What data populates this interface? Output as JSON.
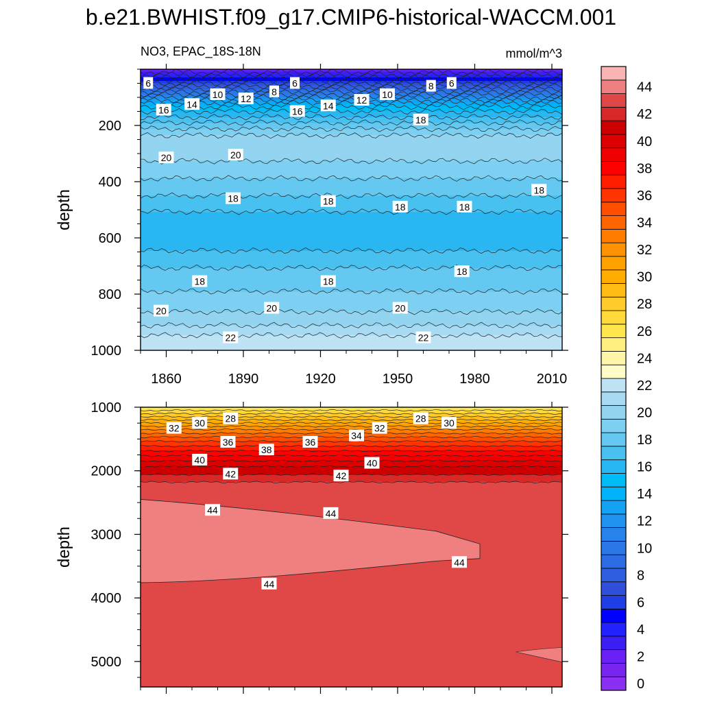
{
  "title": "b.e21.BWHIST.f09_g17.CMIP6-historical-WACCM.001",
  "chart_data": [
    {
      "type": "heatmap",
      "panel": "upper",
      "variable_label": "NO3, EPAC_18S-18N",
      "units_label": "mmol/m^3",
      "ylabel": "depth",
      "xlabel": "",
      "x_range": [
        1850,
        2014
      ],
      "y_range": [
        0,
        1000
      ],
      "y_reversed": true,
      "x_ticks": [
        "1860",
        "1890",
        "1920",
        "1950",
        "1980",
        "2010"
      ],
      "x_tick_values": [
        1860,
        1890,
        1920,
        1950,
        1980,
        2010
      ],
      "y_ticks": [
        "200",
        "400",
        "600",
        "800",
        "1000"
      ],
      "y_tick_values": [
        200,
        400,
        600,
        800,
        1000
      ],
      "depth_profile": [
        [
          0,
          2
        ],
        [
          20,
          4
        ],
        [
          40,
          6
        ],
        [
          60,
          8
        ],
        [
          80,
          10
        ],
        [
          100,
          12
        ],
        [
          120,
          14
        ],
        [
          140,
          15.5
        ],
        [
          170,
          17
        ],
        [
          200,
          18.5
        ],
        [
          240,
          20.2
        ],
        [
          280,
          20.6
        ],
        [
          320,
          20.1
        ],
        [
          360,
          19.5
        ],
        [
          400,
          18.8
        ],
        [
          440,
          18.2
        ],
        [
          480,
          17.4
        ],
        [
          520,
          16.8
        ],
        [
          560,
          16.2
        ],
        [
          600,
          16.3
        ],
        [
          640,
          16.9
        ],
        [
          680,
          17.6
        ],
        [
          720,
          18.2
        ],
        [
          760,
          18.7
        ],
        [
          800,
          19.1
        ],
        [
          840,
          19.6
        ],
        [
          880,
          20.3
        ],
        [
          920,
          21.2
        ],
        [
          950,
          22.1
        ],
        [
          980,
          22.6
        ],
        [
          1000,
          22.9
        ]
      ],
      "contour_labels": [
        {
          "text": "6",
          "x": 1853,
          "y": 50
        },
        {
          "text": "6",
          "x": 1910,
          "y": 50
        },
        {
          "text": "6",
          "x": 1971,
          "y": 50
        },
        {
          "text": "8",
          "x": 1902,
          "y": 80
        },
        {
          "text": "8",
          "x": 1963,
          "y": 60
        },
        {
          "text": "10",
          "x": 1880,
          "y": 90
        },
        {
          "text": "10",
          "x": 1946,
          "y": 90
        },
        {
          "text": "12",
          "x": 1891,
          "y": 105
        },
        {
          "text": "12",
          "x": 1936,
          "y": 110
        },
        {
          "text": "14",
          "x": 1870,
          "y": 125
        },
        {
          "text": "14",
          "x": 1923,
          "y": 130
        },
        {
          "text": "16",
          "x": 1859,
          "y": 145
        },
        {
          "text": "16",
          "x": 1911,
          "y": 150
        },
        {
          "text": "18",
          "x": 1959,
          "y": 180
        },
        {
          "text": "20",
          "x": 1860,
          "y": 315
        },
        {
          "text": "20",
          "x": 1887,
          "y": 305
        },
        {
          "text": "18",
          "x": 1886,
          "y": 460
        },
        {
          "text": "18",
          "x": 1923,
          "y": 470
        },
        {
          "text": "18",
          "x": 1951,
          "y": 490
        },
        {
          "text": "18",
          "x": 1976,
          "y": 490
        },
        {
          "text": "18",
          "x": 2005,
          "y": 430
        },
        {
          "text": "18",
          "x": 1975,
          "y": 720
        },
        {
          "text": "18",
          "x": 1873,
          "y": 755
        },
        {
          "text": "18",
          "x": 1923,
          "y": 755
        },
        {
          "text": "20",
          "x": 1858,
          "y": 860
        },
        {
          "text": "20",
          "x": 1901,
          "y": 850
        },
        {
          "text": "20",
          "x": 1951,
          "y": 850
        },
        {
          "text": "22",
          "x": 1885,
          "y": 955
        },
        {
          "text": "22",
          "x": 1960,
          "y": 955
        }
      ]
    },
    {
      "type": "heatmap",
      "panel": "lower",
      "ylabel": "depth",
      "xlabel": "",
      "x_range": [
        1850,
        2014
      ],
      "y_range": [
        1000,
        5400
      ],
      "y_reversed": true,
      "y_ticks": [
        "1000",
        "2000",
        "3000",
        "4000",
        "5000"
      ],
      "y_tick_values": [
        1000,
        2000,
        3000,
        4000,
        5000
      ],
      "depth_profile": [
        [
          1000,
          26
        ],
        [
          1100,
          28
        ],
        [
          1200,
          30
        ],
        [
          1350,
          33
        ],
        [
          1500,
          35.5
        ],
        [
          1650,
          37.5
        ],
        [
          1800,
          39.5
        ],
        [
          1950,
          41.2
        ],
        [
          2100,
          42.3
        ],
        [
          2200,
          43.2
        ],
        [
          2400,
          43.6
        ],
        [
          5400,
          43.6
        ]
      ],
      "high_region": {
        "value": 44.6,
        "top_start": [
          1850,
          2450
        ],
        "top_end": [
          1965,
          2950
        ],
        "nose_x": 1982,
        "bottom_start": [
          1850,
          3760
        ],
        "bottom_end": [
          1965,
          3420
        ]
      },
      "deep_patch": {
        "value": 44.6,
        "depth_start": 4850,
        "depth_end": 4780,
        "x_start": 1996
      },
      "contour_labels": [
        {
          "text": "28",
          "x": 1885,
          "y": 1180
        },
        {
          "text": "28",
          "x": 1959,
          "y": 1180
        },
        {
          "text": "30",
          "x": 1873,
          "y": 1250
        },
        {
          "text": "30",
          "x": 1970,
          "y": 1250
        },
        {
          "text": "32",
          "x": 1863,
          "y": 1330
        },
        {
          "text": "32",
          "x": 1943,
          "y": 1330
        },
        {
          "text": "34",
          "x": 1934,
          "y": 1450
        },
        {
          "text": "36",
          "x": 1884,
          "y": 1550
        },
        {
          "text": "36",
          "x": 1916,
          "y": 1550
        },
        {
          "text": "38",
          "x": 1899,
          "y": 1670
        },
        {
          "text": "40",
          "x": 1873,
          "y": 1830
        },
        {
          "text": "40",
          "x": 1940,
          "y": 1880
        },
        {
          "text": "42",
          "x": 1885,
          "y": 2050
        },
        {
          "text": "42",
          "x": 1928,
          "y": 2080
        },
        {
          "text": "44",
          "x": 1878,
          "y": 2620
        },
        {
          "text": "44",
          "x": 1924,
          "y": 2670
        },
        {
          "text": "44",
          "x": 1974,
          "y": 3440
        },
        {
          "text": "44",
          "x": 1900,
          "y": 3780
        }
      ]
    }
  ],
  "colorbar": {
    "tick_labels": [
      "0",
      "2",
      "4",
      "6",
      "8",
      "10",
      "12",
      "14",
      "16",
      "18",
      "20",
      "22",
      "24",
      "26",
      "28",
      "30",
      "32",
      "34",
      "36",
      "38",
      "40",
      "42",
      "44"
    ],
    "levels": [
      0,
      1,
      2,
      3,
      4,
      5,
      6,
      7,
      8,
      9,
      10,
      11,
      12,
      13,
      14,
      15,
      16,
      17,
      18,
      19,
      20,
      21,
      22,
      23,
      24,
      25,
      26,
      27,
      28,
      29,
      30,
      31,
      32,
      33,
      34,
      35,
      36,
      37,
      38,
      39,
      40,
      41,
      42,
      43,
      44,
      45
    ],
    "colors": [
      "#8b2ff0",
      "#7a26f0",
      "#6a21f5",
      "#3b1ff5",
      "#2222ff",
      "#0000ff",
      "#1f3fe6",
      "#3050dc",
      "#2f5ee0",
      "#2c6ce4",
      "#2a77e8",
      "#2882ec",
      "#1f92f0",
      "#14a2f5",
      "#00b2fa",
      "#00bcf6",
      "#2ab6f0",
      "#48c0f0",
      "#64c8f1",
      "#7dd0f1",
      "#93d4f0",
      "#a6dbf3",
      "#bde3f5",
      "#fffcc8",
      "#fff6a8",
      "#ffee80",
      "#ffe64c",
      "#ffd83a",
      "#ffcc2a",
      "#ffbc14",
      "#ffad00",
      "#ffa200",
      "#ff9200",
      "#ff7c00",
      "#ff6400",
      "#ff4e00",
      "#ff3400",
      "#ff1e00",
      "#ff0000",
      "#f00000",
      "#dc0000",
      "#cc0000",
      "#d82828",
      "#e04848",
      "#f08080",
      "#fab4b4"
    ]
  },
  "colors": {
    "background": "#ffffff",
    "axis": "#000000",
    "contour_line": "#222222",
    "label_box": "#ffffff"
  }
}
